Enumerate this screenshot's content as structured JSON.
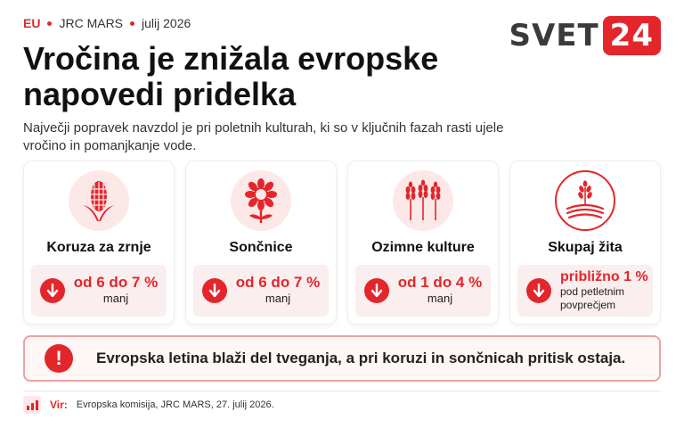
{
  "header": {
    "region": "EU",
    "source_tag": "JRC MARS",
    "date": "julij 2026"
  },
  "logo": {
    "text": "SVET",
    "number": "24"
  },
  "title": "Vročina je znižala evropske napovedi pridelka",
  "subtitle": "Največji popravek navzdol je pri poletnih kulturah, ki so v ključnih fazah rasti ujele vročino in pomanjkanje vode.",
  "cards": [
    {
      "icon": "corn-icon",
      "label": "Koruza za zrnje",
      "value": "od 6 do 7 %",
      "unit": "manj"
    },
    {
      "icon": "sunflower-icon",
      "label": "Sončnice",
      "value": "od 6 do 7 %",
      "unit": "manj"
    },
    {
      "icon": "wheat-icon",
      "label": "Ozimne kulture",
      "value": "od 1 do 4 %",
      "unit": "manj"
    },
    {
      "icon": "grain-field-icon",
      "label": "Skupaj žita",
      "value": "približno 1 %",
      "unit": "pod petletnim povprečjem"
    }
  ],
  "alert": {
    "icon": "exclamation-icon",
    "text": "Evropska letina blaži del tveganja, a pri koruzi in sončnicah pritisk ostaja."
  },
  "footer": {
    "source_label": "Vir:",
    "source_text": "Evropska komisija, JRC MARS, 27. julij 2026."
  },
  "colors": {
    "accent": "#e3262b",
    "light_bg": "#fde8e8",
    "value_bg": "#fbeeee"
  }
}
